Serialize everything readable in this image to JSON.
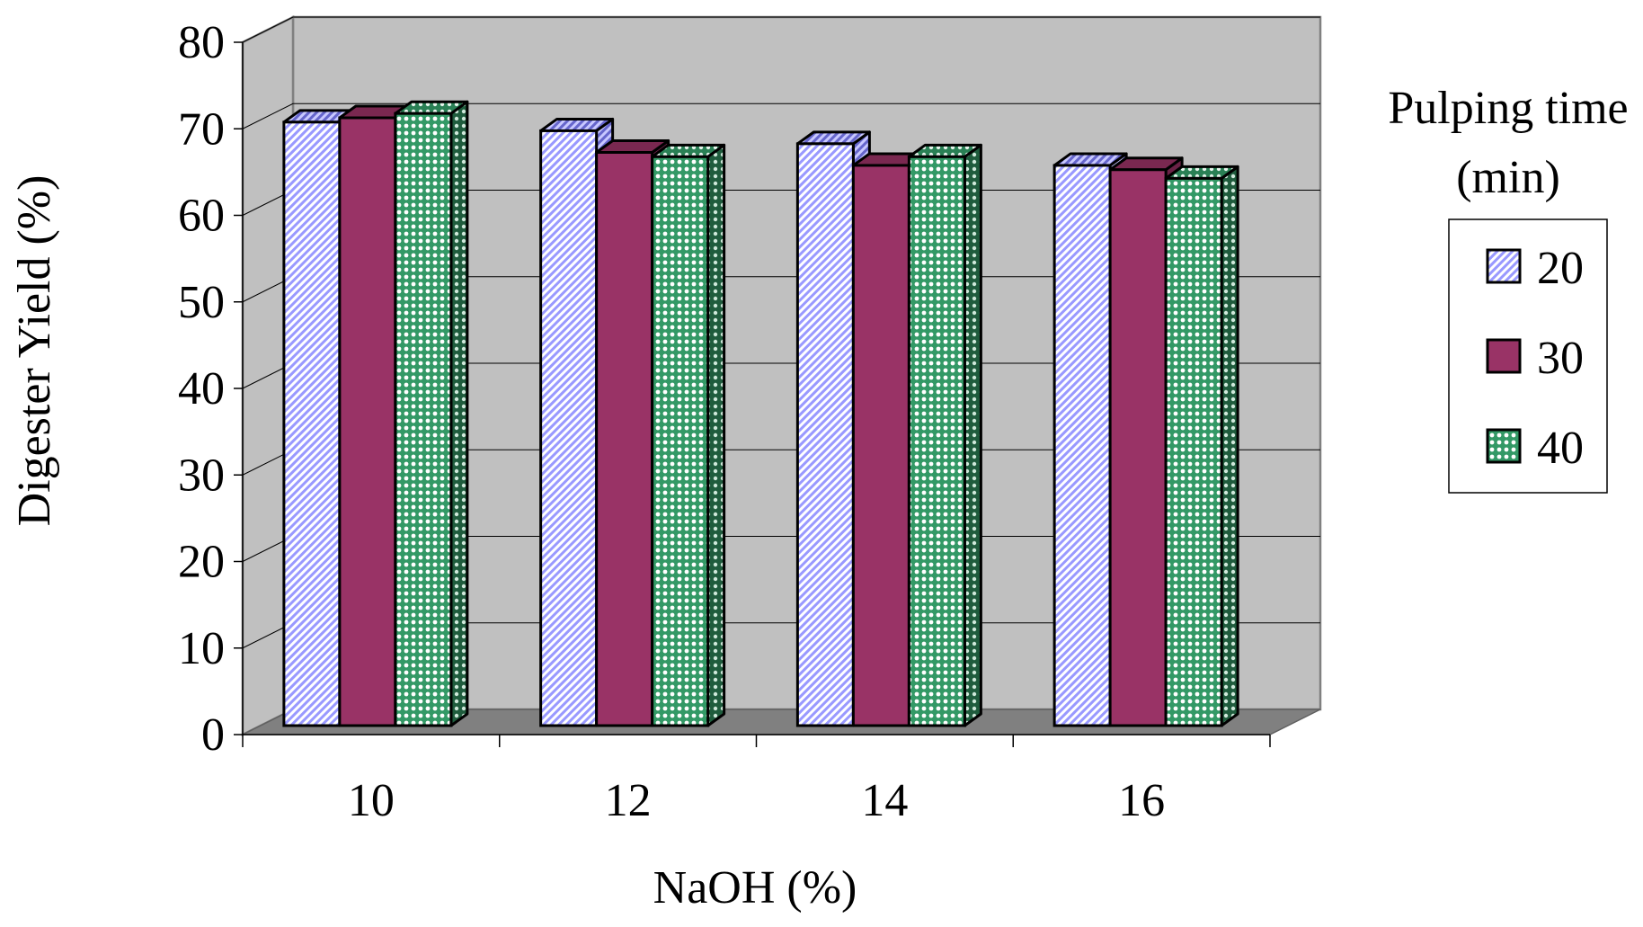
{
  "chart_data": {
    "type": "bar",
    "title": "",
    "xlabel": "NaOH (%)",
    "ylabel": "Digester Yield (%)",
    "categories": [
      "10",
      "12",
      "14",
      "16"
    ],
    "ylim": [
      0,
      80
    ],
    "yticks": [
      "0",
      "10",
      "20",
      "30",
      "40",
      "50",
      "60",
      "70",
      "80"
    ],
    "grid": true,
    "three_d": true,
    "legend": {
      "title": "Pulping time (min)",
      "title_lines": [
        "Pulping time",
        "(min)"
      ],
      "placement": "right"
    },
    "series": [
      {
        "name": "20",
        "values": [
          71.5,
          70.5,
          69.0,
          66.5
        ],
        "color": "#9999ff",
        "pattern": "diagonal-stripes"
      },
      {
        "name": "30",
        "values": [
          72.0,
          68.0,
          66.5,
          66.0
        ],
        "color": "#993366",
        "pattern": "solid"
      },
      {
        "name": "40",
        "values": [
          72.5,
          67.5,
          67.5,
          65.0
        ],
        "color": "#339966",
        "pattern": "dots"
      }
    ],
    "colors": {
      "back_wall": "#c0c0c0",
      "side_wall": "#c0c0c0",
      "floor": "#808080"
    }
  }
}
